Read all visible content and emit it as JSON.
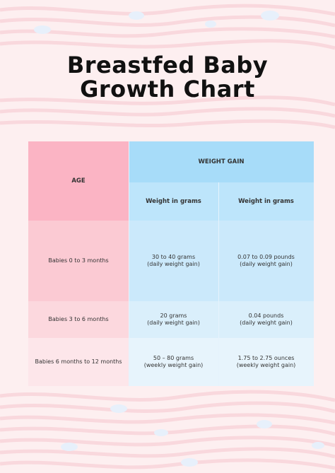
{
  "title": {
    "line1": "Breastfed Baby",
    "line2": "Growth Chart"
  },
  "table": {
    "age_header": "AGE",
    "weight_gain_header": "WEIGHT GAIN",
    "col_grams_header": "Weight in grams",
    "col_pounds_header": "Weight in grams",
    "rows": [
      {
        "age": "Babies 0 to 3 months",
        "grams": "30 to 40 grams",
        "grams_note": "(daily weight gain)",
        "pounds": "0.07 to 0.09 pounds",
        "pounds_note": "(daily weight gain)"
      },
      {
        "age": "Babies 3 to 6 months",
        "grams": "20 grams",
        "grams_note": "(daily weight gain)",
        "pounds": "0.04 pounds",
        "pounds_note": "(daily weight gain)"
      },
      {
        "age": "Babies 6 months to 12 months",
        "grams": "50 – 80 grams",
        "grams_note": "(weekly weight gain)",
        "pounds": "1.75 to 2.75 ounces",
        "pounds_note": "(weekly weight gain)"
      }
    ]
  },
  "colors": {
    "background": "#fdeff0",
    "age_header": "#fbb4c4",
    "weight_header": "#a7dcf9"
  }
}
